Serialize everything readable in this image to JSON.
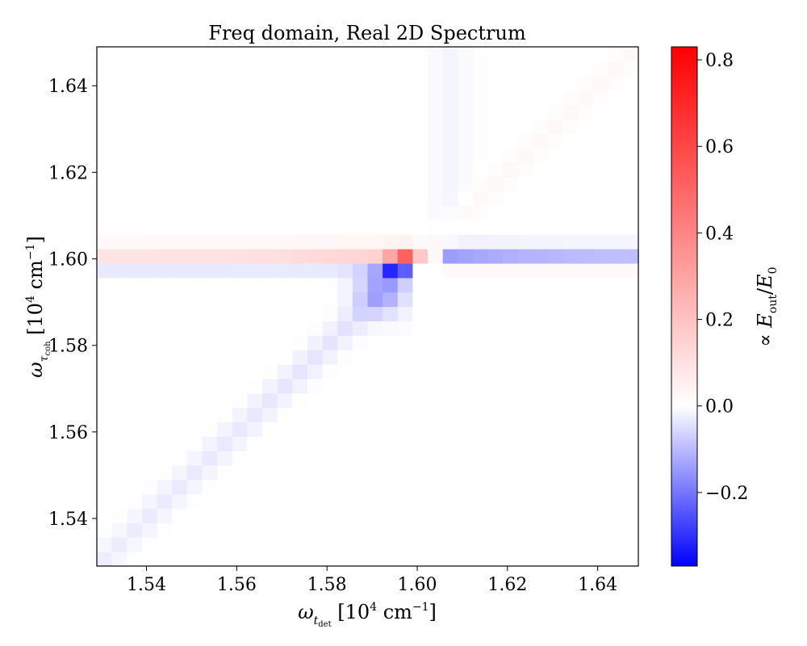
{
  "chart_data": {
    "type": "heatmap",
    "title": "Freq domain, Real 2D Spectrum",
    "xlabel": "ω_t_det [10^4 cm^-1]",
    "ylabel": "ω_τ_coh [10^4 cm^-1]",
    "colorbar_label": "∝ E_out/E_0",
    "xlim": [
      1.529,
      1.649
    ],
    "ylim": [
      1.529,
      1.649
    ],
    "x_ticks": [
      1.54,
      1.56,
      1.58,
      1.6,
      1.62,
      1.64
    ],
    "x_tick_labels": [
      "1.54",
      "1.56",
      "1.58",
      "1.60",
      "1.62",
      "1.64"
    ],
    "y_ticks": [
      1.54,
      1.56,
      1.58,
      1.6,
      1.62,
      1.64
    ],
    "y_tick_labels": [
      "1.54",
      "1.56",
      "1.58",
      "1.60",
      "1.62",
      "1.64"
    ],
    "colorbar": {
      "vmin": -0.37,
      "vmax": 0.83,
      "cmap": "bwr",
      "ticks": [
        -0.2,
        0.0,
        0.2,
        0.4,
        0.6,
        0.8
      ],
      "tick_labels": [
        "−0.2",
        "0.0",
        "0.2",
        "0.4",
        "0.6",
        "0.8"
      ]
    },
    "grid": false,
    "grid_size": 36,
    "peak": {
      "x": 1.5975,
      "y": 1.6015,
      "value": 0.83
    },
    "trough": {
      "x": 1.595,
      "y": 1.598,
      "value": -0.37
    }
  },
  "colors": {
    "negative": "#0000ff",
    "zero": "#ffffff",
    "positive": "#ff0000"
  }
}
